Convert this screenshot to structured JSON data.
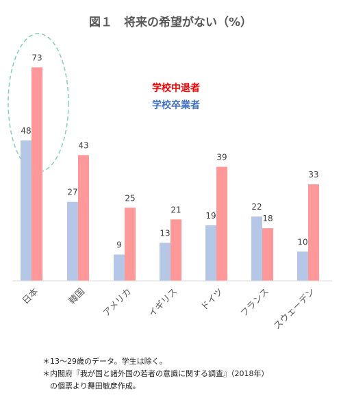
{
  "chart_data": {
    "type": "bar",
    "title": "図１　将来の希望がない（%）",
    "categories": [
      "日本",
      "韓国",
      "アメリカ",
      "イギリス",
      "ドイツ",
      "フランス",
      "スウェーデン"
    ],
    "series": [
      {
        "name": "学校卒業者",
        "color": "#b4c7e7",
        "values": [
          48,
          27,
          9,
          13,
          19,
          22,
          10
        ]
      },
      {
        "name": "学校中退者",
        "color": "#ff9999",
        "values": [
          73,
          43,
          25,
          21,
          39,
          18,
          33
        ]
      }
    ],
    "ylim": [
      0,
      80
    ],
    "grid": false,
    "legend": {
      "position": "top-center",
      "order": [
        1,
        0
      ]
    },
    "annotation": "dashed-ellipse-around-日本",
    "xlabel": "",
    "ylabel": ""
  },
  "colors": {
    "legend_dropout_text": "#ff0000",
    "legend_graduate_text": "#4472c4",
    "highlight_ellipse": "#7fd1b9",
    "axis_text": "#595959"
  },
  "notes": [
    "＊13〜29歳のデータ。学生は除く。",
    "＊内閣府『我が国と諸外国の若者の意識に関する調査』（2018年）",
    "　の個票より舞田敏彦作成。"
  ]
}
